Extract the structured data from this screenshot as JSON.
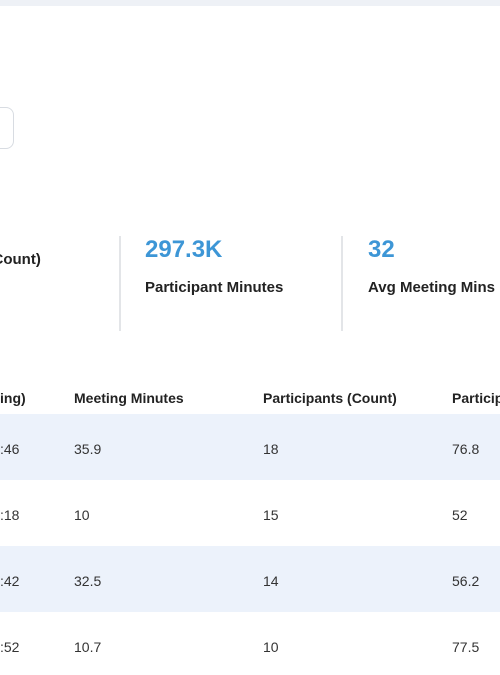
{
  "stats": [
    {
      "value": "",
      "label": "ts (Count)"
    },
    {
      "value": "297.3K",
      "label": "Participant Minutes"
    },
    {
      "value": "32",
      "label": "Avg Meeting Mins"
    }
  ],
  "table": {
    "headers": [
      "ing)",
      "Meeting Minutes",
      "Participants (Count)",
      "Particip"
    ],
    "rows": [
      [
        ":46",
        "35.9",
        "18",
        "76.8"
      ],
      [
        ":18",
        "10",
        "15",
        "52"
      ],
      [
        ":42",
        "32.5",
        "14",
        "56.2"
      ],
      [
        ":52",
        "10.7",
        "10",
        "77.5"
      ]
    ]
  }
}
